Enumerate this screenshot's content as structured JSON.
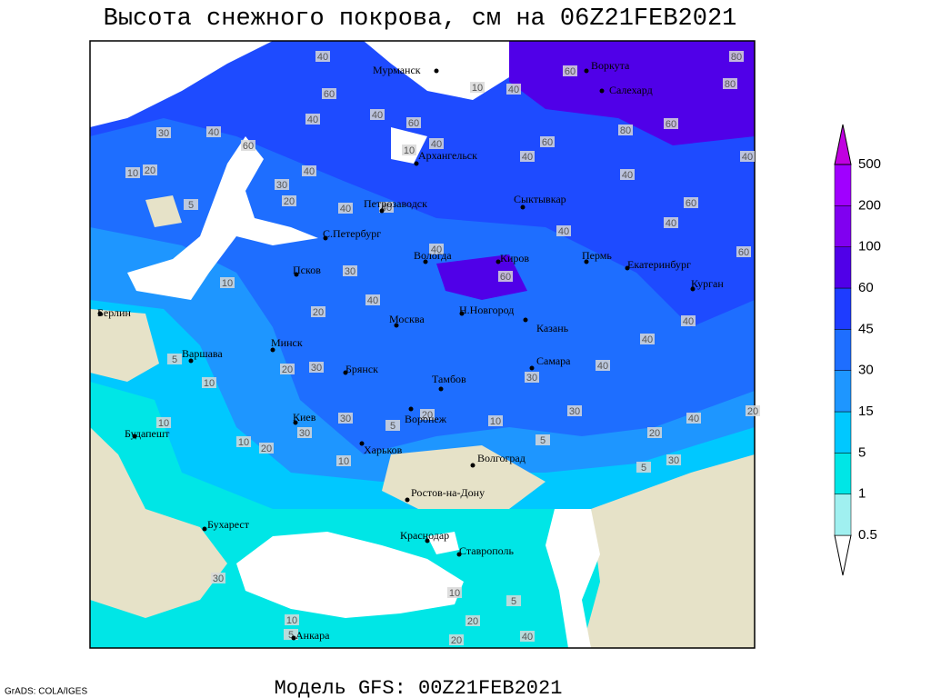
{
  "title": "Высота снежного покрова, см на 06Z21FEB2021",
  "footer": "Модель GFS: 00Z21FEB2021",
  "credit": "GrADS: COLA/IGES",
  "cities": [
    "Мурманск",
    "Воркута",
    "Салехард",
    "Архангельск",
    "Петрозаводск",
    "Сыктывкар",
    "С.Петербург",
    "Вологда",
    "Киров",
    "Пермь",
    "Екатеринбург",
    "Курган",
    "Псков",
    "Берлин",
    "Москва",
    "Н.Новгород",
    "Казань",
    "Минск",
    "Варшава",
    "Самара",
    "Брянск",
    "Тамбов",
    "Киев",
    "Воронеж",
    "Будапешт",
    "Харьков",
    "Волгоград",
    "Ростов-на-Дону",
    "Бухарест",
    "Краснодар",
    "Ставрополь",
    "Анкара"
  ],
  "contour_labels": [
    40,
    60,
    80,
    80,
    10,
    40,
    60,
    40,
    40,
    60,
    40,
    60,
    80,
    60,
    30,
    40,
    60,
    10,
    20,
    40,
    30,
    20,
    10,
    40,
    40,
    40,
    5,
    40,
    40,
    40,
    40,
    60,
    40,
    60,
    30,
    10,
    20,
    40,
    60,
    40,
    40,
    30,
    20,
    10,
    5,
    40,
    30,
    30,
    40,
    20,
    30,
    30,
    5,
    20,
    10,
    5,
    10,
    20,
    10,
    5,
    30,
    20,
    10,
    30,
    10,
    5,
    20,
    20,
    40,
    10,
    5
  ],
  "colorbar": {
    "levels": [
      0.5,
      1,
      5,
      15,
      30,
      45,
      60,
      100,
      200,
      500
    ],
    "colors": [
      "#ffffff",
      "#a0f0f0",
      "#00e6e6",
      "#00c8ff",
      "#1e96ff",
      "#1e6eff",
      "#1e3cff",
      "#5000e8",
      "#8000f0",
      "#a000ff",
      "#c000e0"
    ]
  }
}
